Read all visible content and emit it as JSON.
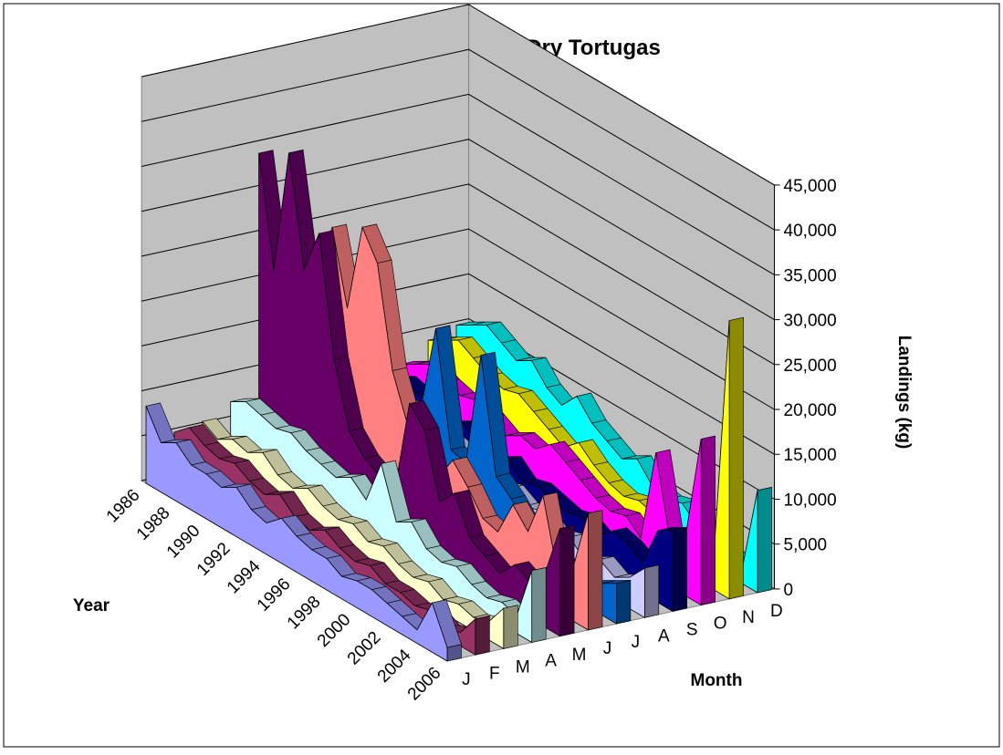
{
  "chart_data": {
    "type": "area3d",
    "title": "Florida Keys and Dry Tortugas",
    "x_label": "Year",
    "depth_label": "Month",
    "y_label": "Landings (kg)",
    "categories": [
      "1986",
      null,
      "1988",
      null,
      "1990",
      null,
      "1992",
      null,
      "1994",
      null,
      "1996",
      null,
      "1998",
      null,
      "2000",
      null,
      "2002",
      null,
      "2004",
      null,
      "2006"
    ],
    "ylim": [
      0,
      45000
    ],
    "yticks": [
      0,
      {
        "value": 5000,
        "label": "5,000"
      },
      {
        "value": 10000,
        "label": "10,000"
      },
      {
        "value": 15000,
        "label": "15,000"
      },
      {
        "value": 20000,
        "label": "20,000"
      },
      {
        "value": 25000,
        "label": "25,000"
      },
      {
        "value": 30000,
        "label": "30,000"
      },
      {
        "value": 35000,
        "label": "35,000"
      },
      {
        "value": 40000,
        "label": "40,000"
      },
      {
        "value": 45000,
        "label": "45,000"
      }
    ],
    "grid": true,
    "series": [
      {
        "name": "J",
        "color": "#9999ff",
        "values": [
          8600,
          5500,
          6500,
          5000,
          5000,
          4500,
          5500,
          4000,
          3500,
          5000,
          4000,
          3500,
          3500,
          2500,
          3000,
          3000,
          2500,
          2000,
          1500,
          5500,
          1500
        ]
      },
      {
        "name": "F",
        "color": "#993366",
        "values": [
          5000,
          6500,
          5500,
          5000,
          5500,
          4500,
          4000,
          5000,
          3500,
          3000,
          4000,
          3000,
          2500,
          3000,
          2000,
          2000,
          1500,
          2000,
          1000,
          1500,
          4000
        ]
      },
      {
        "name": "M",
        "color": "#ffffcc",
        "values": [
          5500,
          4500,
          5500,
          5000,
          6000,
          4500,
          4000,
          5000,
          4000,
          3500,
          4000,
          3000,
          3500,
          2500,
          2000,
          2500,
          1500,
          2000,
          1500,
          2000,
          4500
        ]
      },
      {
        "name": "A",
        "color": "#ccffff",
        "values": [
          7000,
          8000,
          7500,
          7000,
          7500,
          6500,
          6000,
          5500,
          6500,
          5000,
          10000,
          4500,
          5500,
          3500,
          3000,
          3500,
          2500,
          2000,
          2500,
          2000,
          8000
        ]
      },
      {
        "name": "M",
        "color": "#660066",
        "values": [
          34000,
          22000,
          36000,
          24000,
          29000,
          16000,
          9000,
          7000,
          6000,
          5000,
          16000,
          14000,
          7000,
          9000,
          5000,
          4000,
          3000,
          5000,
          4000,
          6000,
          12000
        ]
      },
      {
        "name": "J",
        "color": "#ff8080",
        "values": [
          10000,
          15000,
          22000,
          28000,
          20000,
          30000,
          27000,
          16000,
          11000,
          8000,
          7000,
          10000,
          8000,
          5500,
          5000,
          9000,
          7000,
          12000,
          4000,
          6000,
          13000
        ]
      },
      {
        "name": "J",
        "color": "#0066cc",
        "values": [
          7000,
          7500,
          8500,
          9000,
          10000,
          8500,
          8000,
          11000,
          21000,
          8500,
          8000,
          21000,
          8500,
          7000,
          5000,
          4500,
          3500,
          2500,
          2500,
          3500,
          4500
        ]
      },
      {
        "name": "A",
        "color": "#ccccff",
        "values": [
          7500,
          8500,
          7500,
          7000,
          8000,
          7000,
          6000,
          7000,
          6500,
          6000,
          5000,
          5500,
          4500,
          5000,
          3500,
          4000,
          2500,
          3500,
          2500,
          3500,
          5500
        ]
      },
      {
        "name": "S",
        "color": "#000080",
        "values": [
          6000,
          7000,
          8000,
          7500,
          7000,
          6000,
          7000,
          6500,
          5000,
          6000,
          4500,
          5000,
          4500,
          4000,
          4500,
          3500,
          5000,
          4500,
          3500,
          8000,
          9000
        ]
      },
      {
        "name": "O",
        "color": "#ff00ff",
        "values": [
          7000,
          8000,
          9000,
          8000,
          7500,
          8000,
          7000,
          6000,
          7000,
          6500,
          8000,
          7000,
          6000,
          5000,
          4500,
          5000,
          3500,
          14000,
          4500,
          7000,
          18500
        ]
      },
      {
        "name": "N",
        "color": "#ffff00",
        "values": [
          9000,
          10000,
          11000,
          10000,
          9000,
          8500,
          9000,
          8000,
          7000,
          6000,
          7500,
          6000,
          5000,
          4500,
          5000,
          4500,
          3500,
          2500,
          2500,
          4500,
          31000
        ]
      },
      {
        "name": "D",
        "color": "#00ffff",
        "values": [
          10000,
          11000,
          12000,
          11000,
          10000,
          11000,
          9000,
          8000,
          10000,
          8000,
          7000,
          6000,
          7000,
          5000,
          4500,
          5000,
          3500,
          2500,
          2500,
          1800,
          11400
        ]
      }
    ]
  }
}
